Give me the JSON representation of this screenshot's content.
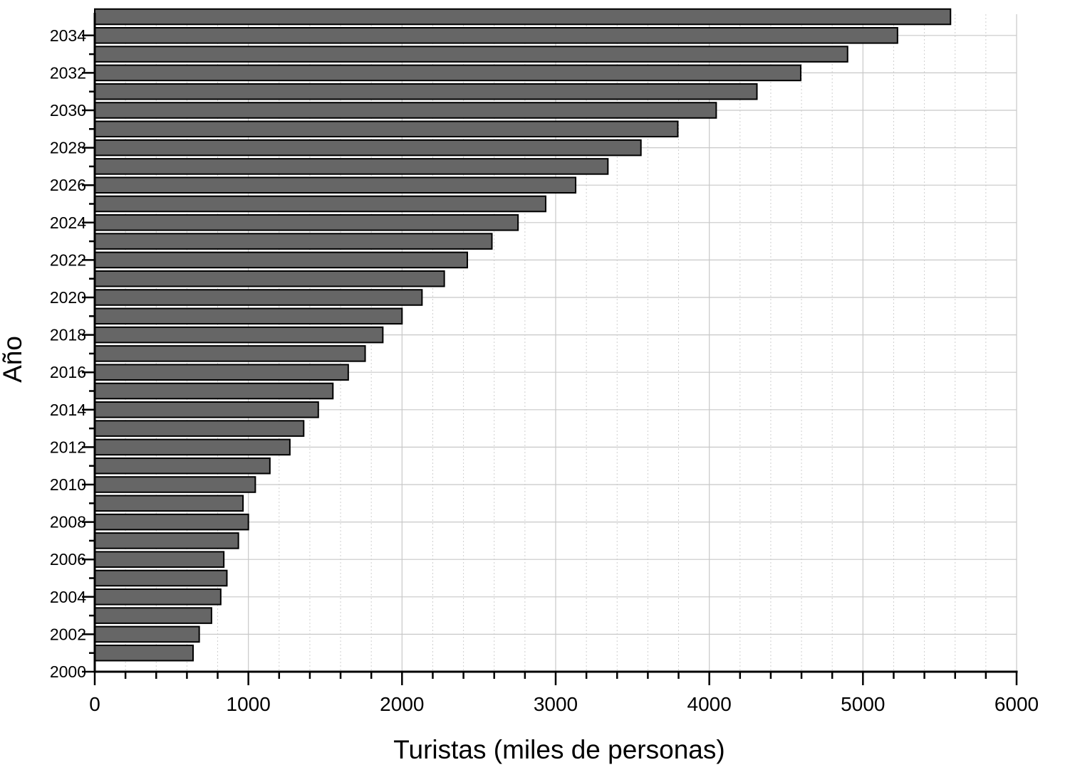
{
  "chart_data": {
    "type": "bar",
    "orientation": "horizontal",
    "title": "",
    "xlabel": "Turistas (miles de personas)",
    "ylabel": "Año",
    "xlim": [
      0,
      6000
    ],
    "ylim": [
      2000,
      2035
    ],
    "x_ticks": [
      "0",
      "1000",
      "2000",
      "3000",
      "4000",
      "5000",
      "6000"
    ],
    "y_ticks": [
      "2000",
      "2002",
      "2004",
      "2006",
      "2008",
      "2010",
      "2012",
      "2014",
      "2016",
      "2018",
      "2020",
      "2022",
      "2024",
      "2026",
      "2028",
      "2030",
      "2032",
      "2034"
    ],
    "grid": true,
    "bar_color": "#666666",
    "categories": [
      2000,
      2001,
      2002,
      2003,
      2004,
      2005,
      2006,
      2007,
      2008,
      2009,
      2010,
      2011,
      2012,
      2013,
      2014,
      2015,
      2016,
      2017,
      2018,
      2019,
      2020,
      2021,
      2022,
      2023,
      2024,
      2025,
      2026,
      2027,
      2028,
      2029,
      2030,
      2031,
      2032,
      2033,
      2034,
      2035
    ],
    "values": [
      null,
      640,
      680,
      760,
      820,
      860,
      840,
      935,
      1000,
      965,
      1045,
      1140,
      1270,
      1360,
      1455,
      1550,
      1650,
      1760,
      1875,
      2000,
      2130,
      2275,
      2425,
      2585,
      2755,
      2935,
      3130,
      3340,
      3555,
      3795,
      4045,
      4310,
      4595,
      4900,
      5225,
      5570
    ]
  }
}
